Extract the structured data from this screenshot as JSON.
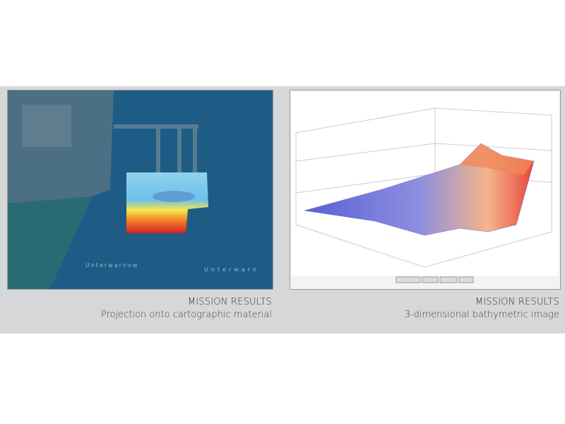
{
  "panels": [
    {
      "caption_title": "MISSION RESULTS",
      "caption_subtitle": "Projection onto cartographic material",
      "map_labels": [
        "Unterwarnow",
        "Unterwarn"
      ]
    },
    {
      "caption_title": "MISSION RESULTS",
      "caption_subtitle": "3-dimensional bathymetric image"
    }
  ]
}
